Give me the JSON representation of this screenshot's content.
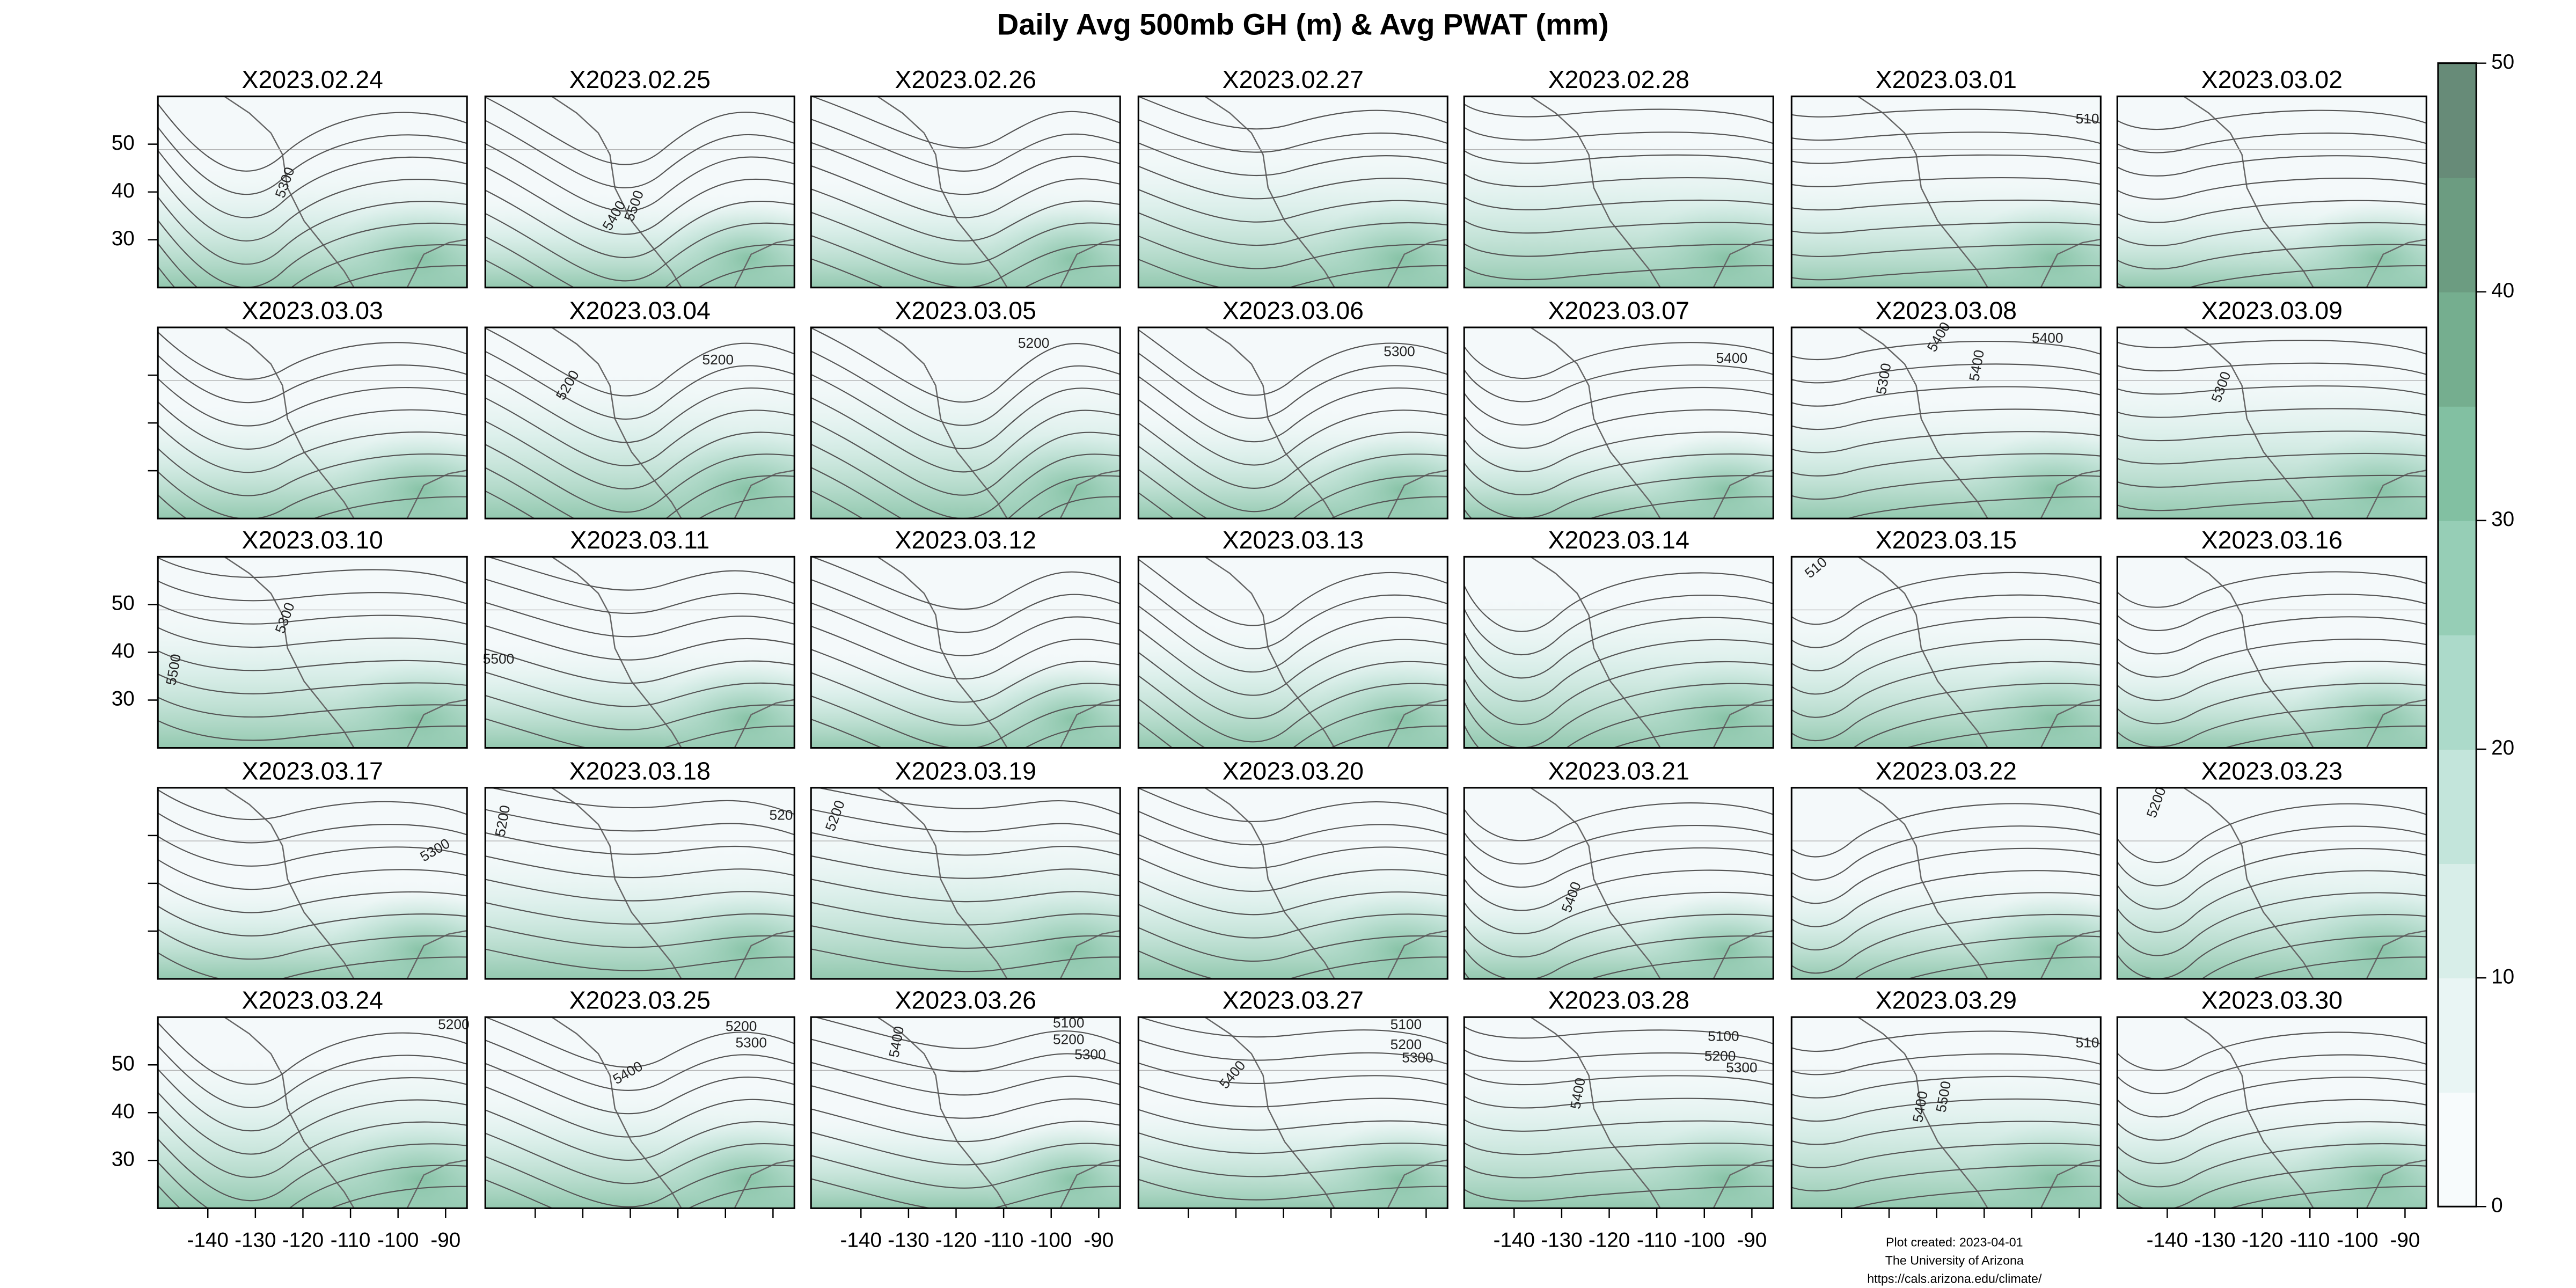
{
  "title": "Daily Avg 500mb GH (m) & Avg PWAT (mm)",
  "panels": [
    {
      "title": "X2023.02.24",
      "contour_labels": [
        "5300"
      ]
    },
    {
      "title": "X2023.02.25",
      "contour_labels": [
        "5400",
        "5500"
      ]
    },
    {
      "title": "X2023.02.26",
      "contour_labels": []
    },
    {
      "title": "X2023.02.27",
      "contour_labels": []
    },
    {
      "title": "X2023.02.28",
      "contour_labels": []
    },
    {
      "title": "X2023.03.01",
      "contour_labels": [
        "510"
      ]
    },
    {
      "title": "X2023.03.02",
      "contour_labels": []
    },
    {
      "title": "X2023.03.03",
      "contour_labels": []
    },
    {
      "title": "X2023.03.04",
      "contour_labels": [
        "5200",
        "5200"
      ]
    },
    {
      "title": "X2023.03.05",
      "contour_labels": [
        "5200"
      ]
    },
    {
      "title": "X2023.03.06",
      "contour_labels": [
        "5300"
      ]
    },
    {
      "title": "X2023.03.07",
      "contour_labels": [
        "5400"
      ]
    },
    {
      "title": "X2023.03.08",
      "contour_labels": [
        "5300",
        "5400",
        "5400",
        "5400"
      ]
    },
    {
      "title": "X2023.03.09",
      "contour_labels": [
        "5300"
      ]
    },
    {
      "title": "X2023.03.10",
      "contour_labels": [
        "5300",
        "5500"
      ]
    },
    {
      "title": "X2023.03.11",
      "contour_labels": [
        "5500"
      ]
    },
    {
      "title": "X2023.03.12",
      "contour_labels": []
    },
    {
      "title": "X2023.03.13",
      "contour_labels": []
    },
    {
      "title": "X2023.03.14",
      "contour_labels": []
    },
    {
      "title": "X2023.03.15",
      "contour_labels": [
        "510"
      ]
    },
    {
      "title": "X2023.03.16",
      "contour_labels": []
    },
    {
      "title": "X2023.03.17",
      "contour_labels": [
        "5300"
      ]
    },
    {
      "title": "X2023.03.18",
      "contour_labels": [
        "5200",
        "520"
      ]
    },
    {
      "title": "X2023.03.19",
      "contour_labels": [
        "5200"
      ]
    },
    {
      "title": "X2023.03.20",
      "contour_labels": []
    },
    {
      "title": "X2023.03.21",
      "contour_labels": [
        "5400"
      ]
    },
    {
      "title": "X2023.03.22",
      "contour_labels": []
    },
    {
      "title": "X2023.03.23",
      "contour_labels": [
        "5200"
      ]
    },
    {
      "title": "X2023.03.24",
      "contour_labels": [
        "5200"
      ]
    },
    {
      "title": "X2023.03.25",
      "contour_labels": [
        "5200",
        "5300",
        "5400"
      ]
    },
    {
      "title": "X2023.03.26",
      "contour_labels": [
        "5100",
        "5200",
        "5300",
        "5400"
      ]
    },
    {
      "title": "X2023.03.27",
      "contour_labels": [
        "5100",
        "5200",
        "5300",
        "5400"
      ]
    },
    {
      "title": "X2023.03.28",
      "contour_labels": [
        "5100",
        "5200",
        "5300",
        "5400"
      ]
    },
    {
      "title": "X2023.03.29",
      "contour_labels": [
        "510",
        "5400",
        "5500"
      ]
    },
    {
      "title": "X2023.03.30",
      "contour_labels": []
    }
  ],
  "lat_lim": [
    20,
    60
  ],
  "lat_ticks": [
    30,
    40,
    50
  ],
  "lon_lim": [
    -150.5,
    -85.5
  ],
  "lon_ticks": [
    -140,
    -130,
    -120,
    -110,
    -100,
    -90
  ],
  "colorbar": {
    "lim": [
      0,
      50
    ],
    "ticks": [
      0,
      10,
      20,
      30,
      40,
      50
    ],
    "colors": [
      "#f7fbfc",
      "#e9f5f4",
      "#d8eee9",
      "#c3e5db",
      "#acdaca",
      "#96ceb6",
      "#82c0a2",
      "#75ae8f",
      "#6c9c81",
      "#678b78"
    ]
  },
  "footer": [
    "Plot created: 2023-04-01",
    "The University of Arizona",
    "https://cals.arizona.edu/climate/"
  ]
}
